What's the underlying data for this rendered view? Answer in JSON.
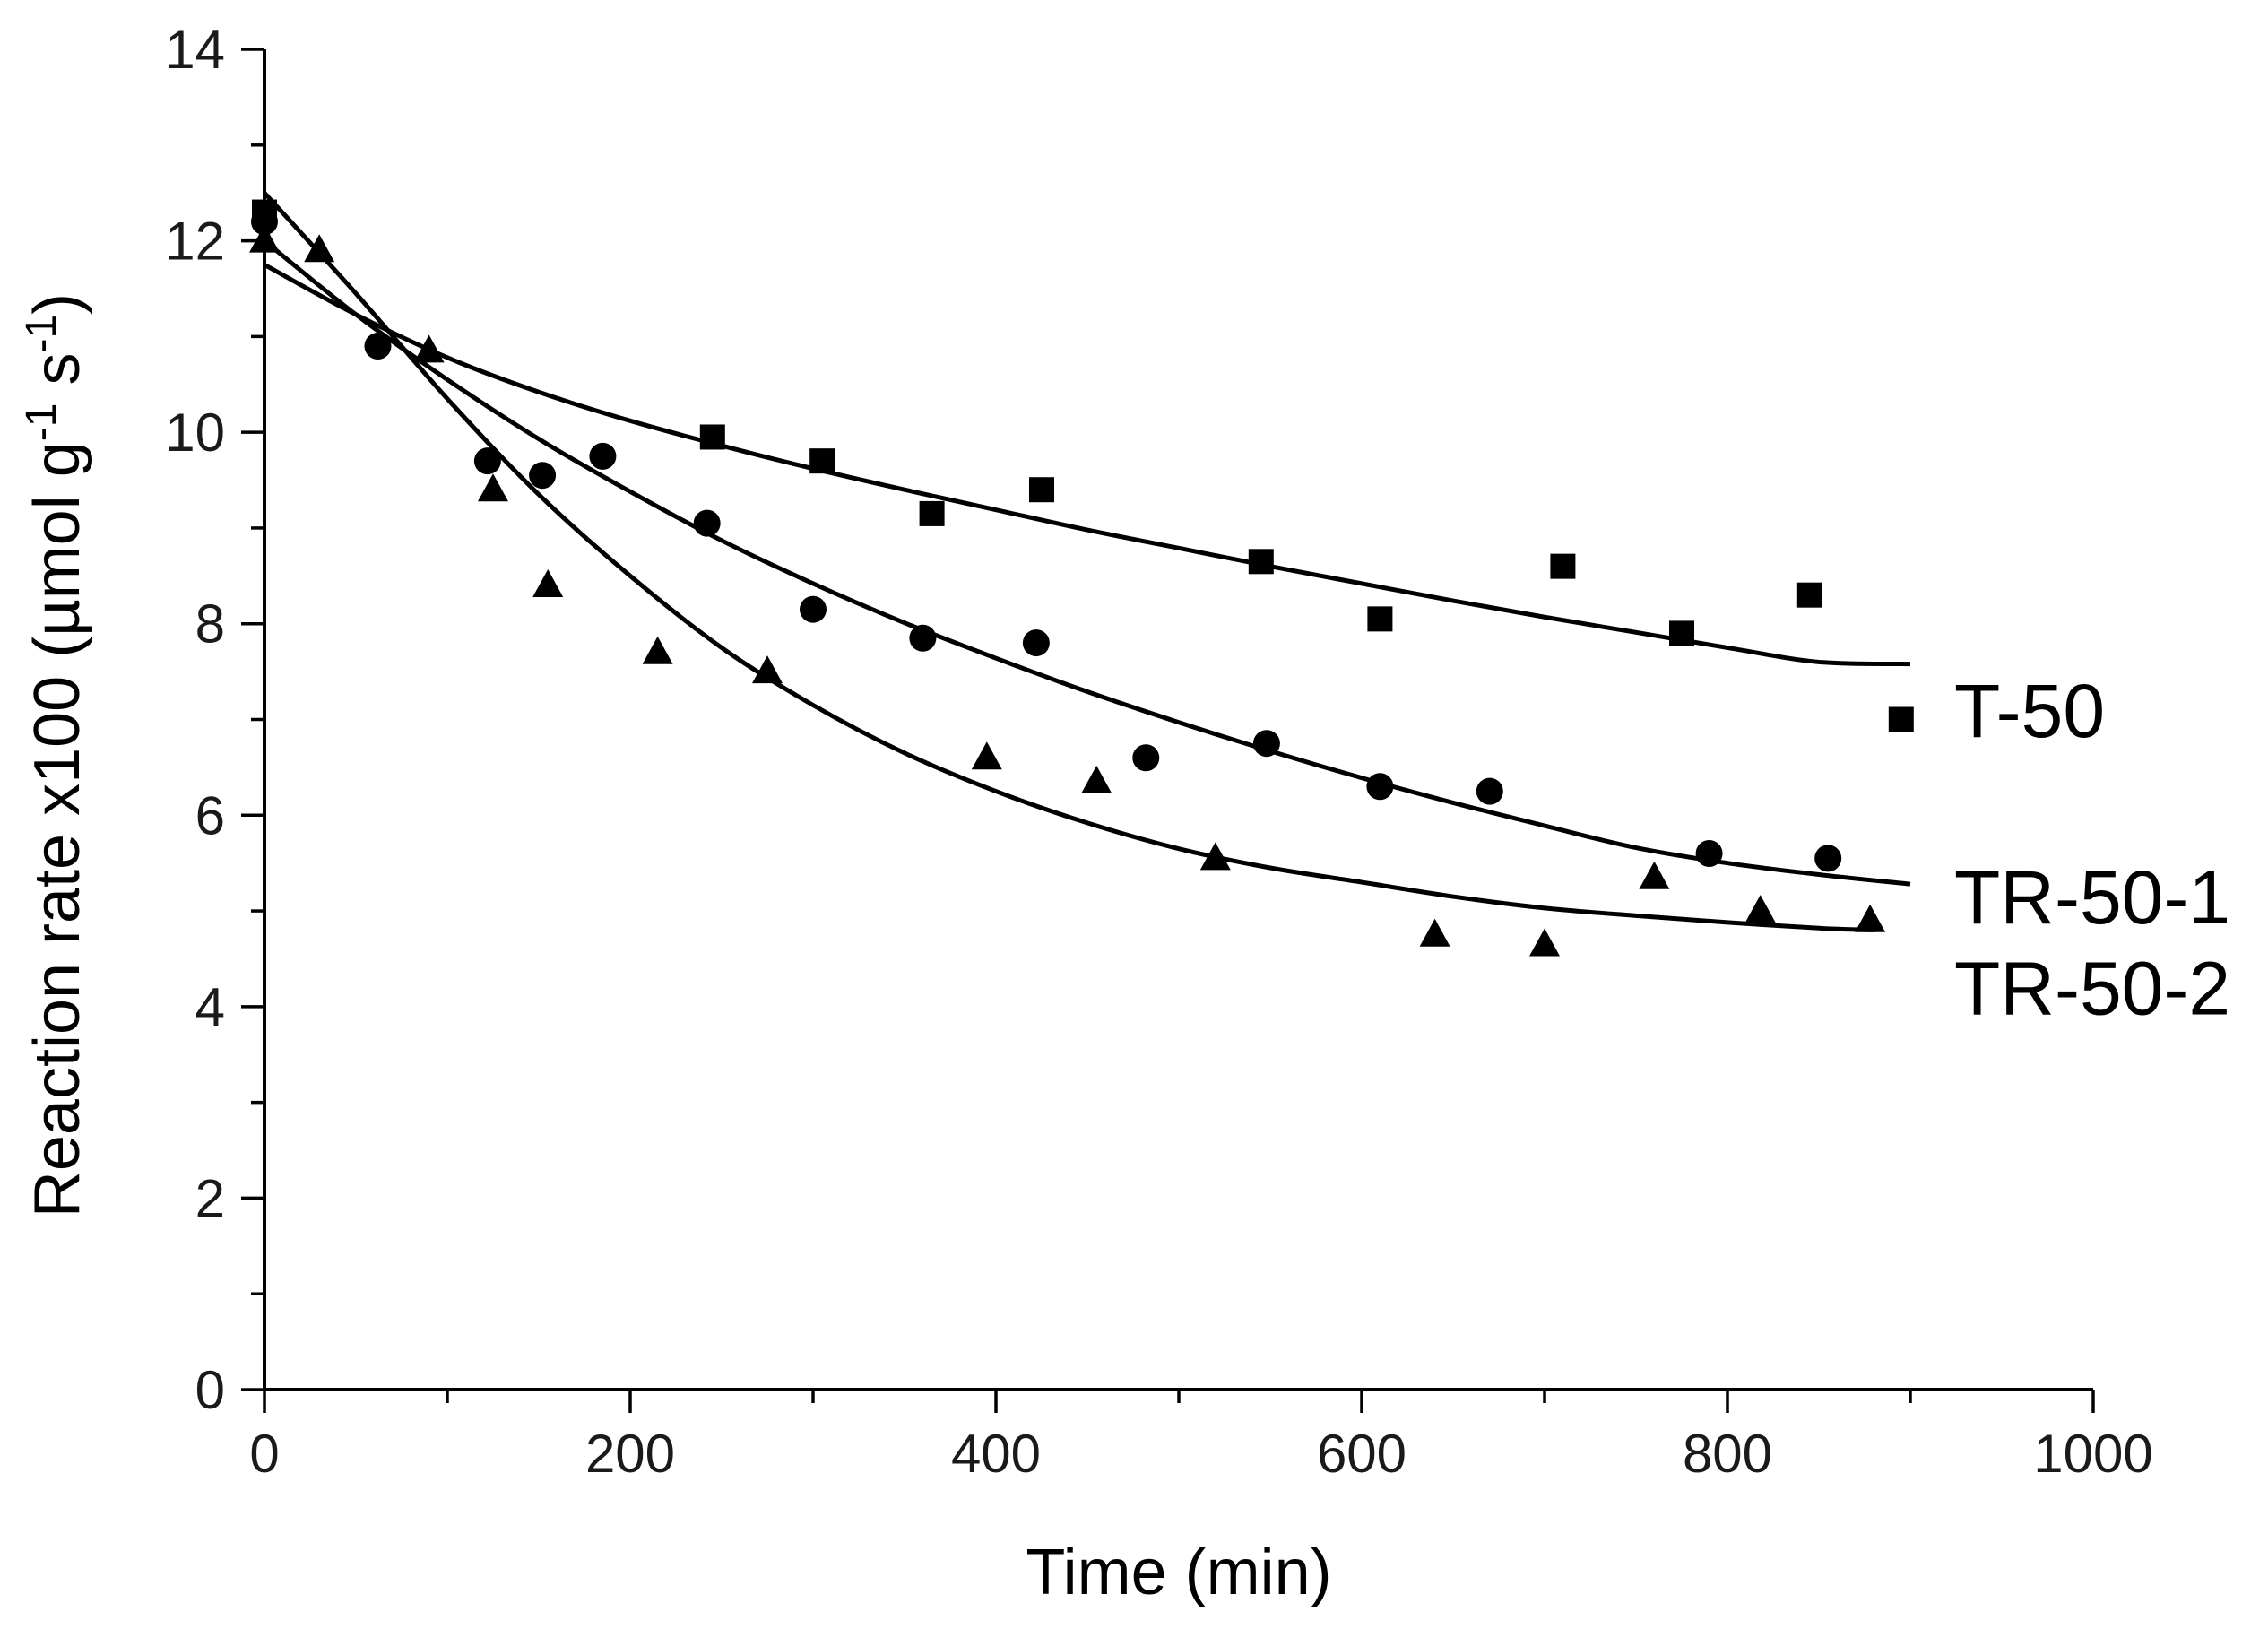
{
  "chart_data": {
    "type": "scatter",
    "title": "",
    "xlabel": "Time (min)",
    "ylabel_main": "Reaction rate x100 (µmol g",
    "ylabel_exp1": "-1",
    "ylabel_mid": " s",
    "ylabel_exp2": "-1",
    "ylabel_end": ")",
    "xlim": [
      0,
      1000
    ],
    "ylim": [
      0,
      14
    ],
    "xticks": [
      0,
      200,
      400,
      600,
      800,
      1000
    ],
    "yticks": [
      0,
      2,
      4,
      6,
      8,
      10,
      12,
      14
    ],
    "grid": false,
    "series": [
      {
        "name": "T-50",
        "marker": "square",
        "x": [
          0,
          245,
          305,
          365,
          425,
          545,
          610,
          710,
          775,
          845,
          895
        ],
        "y": [
          12.3,
          9.95,
          9.7,
          9.15,
          9.4,
          8.65,
          8.05,
          8.6,
          7.9,
          8.3,
          7.0
        ],
        "fit_x": [
          0,
          50,
          100,
          150,
          200,
          250,
          300,
          350,
          400,
          450,
          500,
          550,
          600,
          650,
          700,
          750,
          800,
          850,
          900
        ],
        "fit_y": [
          11.75,
          11.23,
          10.78,
          10.42,
          10.12,
          9.86,
          9.62,
          9.4,
          9.19,
          8.98,
          8.79,
          8.6,
          8.42,
          8.24,
          8.07,
          7.91,
          7.75,
          7.6,
          7.58
        ]
      },
      {
        "name": "TR-50-1",
        "marker": "circle",
        "x": [
          0,
          62,
          122,
          152,
          185,
          242,
          300,
          360,
          422,
          482,
          548,
          610,
          670,
          790,
          855
        ],
        "y": [
          12.2,
          10.9,
          9.7,
          9.55,
          9.75,
          9.05,
          8.15,
          7.85,
          7.8,
          6.6,
          6.75,
          6.3,
          6.25,
          5.6,
          5.55
        ],
        "fit_x": [
          0,
          50,
          100,
          150,
          200,
          250,
          300,
          350,
          400,
          450,
          500,
          550,
          600,
          650,
          700,
          750,
          800,
          850,
          900
        ],
        "fit_y": [
          12.0,
          11.23,
          10.55,
          9.93,
          9.38,
          8.87,
          8.42,
          8.01,
          7.64,
          7.29,
          6.97,
          6.67,
          6.39,
          6.13,
          5.89,
          5.66,
          5.5,
          5.38,
          5.28
        ]
      },
      {
        "name": "TR-50-2",
        "marker": "triangle",
        "x": [
          0,
          30,
          90,
          125,
          155,
          215,
          275,
          395,
          455,
          520,
          640,
          700,
          760,
          818,
          878
        ],
        "y": [
          12.0,
          11.9,
          10.85,
          9.4,
          8.4,
          7.7,
          7.5,
          6.6,
          6.35,
          5.55,
          4.75,
          4.65,
          5.35,
          5.0,
          4.9
        ],
        "fit_x": [
          0,
          50,
          100,
          150,
          200,
          250,
          300,
          350,
          400,
          450,
          500,
          550,
          600,
          650,
          700,
          750,
          800,
          850,
          880
        ],
        "fit_y": [
          12.5,
          11.45,
          10.35,
          9.35,
          8.5,
          7.75,
          7.15,
          6.65,
          6.25,
          5.92,
          5.65,
          5.45,
          5.3,
          5.15,
          5.03,
          4.95,
          4.88,
          4.82,
          4.8
        ]
      }
    ]
  }
}
